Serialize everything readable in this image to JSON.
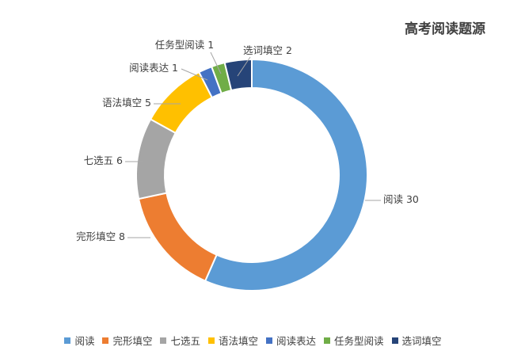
{
  "chart_data": {
    "type": "pie",
    "variant": "donut",
    "title": "高考阅读题源",
    "categories": [
      "阅读",
      "完形填空",
      "七选五",
      "语法填空",
      "阅读表达",
      "任务型阅读",
      "选词填空"
    ],
    "values": [
      30,
      8,
      6,
      5,
      1,
      1,
      2
    ],
    "colors": [
      "#5B9BD5",
      "#ED7D31",
      "#A5A5A5",
      "#FFC000",
      "#4472C4",
      "#70AD47",
      "#264478"
    ],
    "data_labels": [
      "阅读 30",
      "完形填空 8",
      "七选五 6",
      "语法填空 5",
      "阅读表达 1",
      "任务型阅读 1",
      "选词填空 2"
    ],
    "legend_position": "bottom"
  }
}
